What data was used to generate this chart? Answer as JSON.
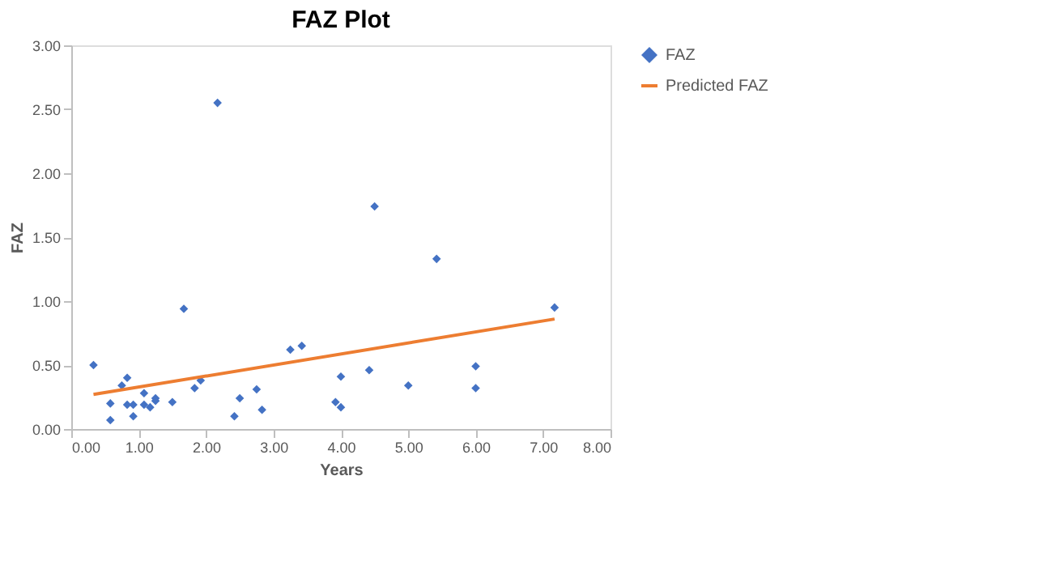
{
  "chart_data": {
    "type": "scatter",
    "title": "FAZ Plot",
    "xlabel": "Years",
    "ylabel": "FAZ",
    "xlim": [
      0,
      8
    ],
    "xticks": [
      {
        "value": 0,
        "label": "0.00"
      },
      {
        "value": 1,
        "label": "1.00"
      },
      {
        "value": 2,
        "label": "2.00"
      },
      {
        "value": 3,
        "label": "3.00"
      },
      {
        "value": 4,
        "label": "4.00"
      },
      {
        "value": 5,
        "label": "5.00"
      },
      {
        "value": 6,
        "label": "6.00"
      },
      {
        "value": 7,
        "label": "7.00"
      },
      {
        "value": 8,
        "label": "8.00"
      }
    ],
    "ylim": [
      0,
      3
    ],
    "yticks": [
      {
        "value": 0,
        "label": "0.00"
      },
      {
        "value": 0.5,
        "label": "0.50"
      },
      {
        "value": 1,
        "label": "1.00"
      },
      {
        "value": 1.5,
        "label": "1.50"
      },
      {
        "value": 2,
        "label": "2.00"
      },
      {
        "value": 2.5,
        "label": "2.50"
      },
      {
        "value": 3,
        "label": "3.00"
      }
    ],
    "grid": false,
    "legend": "right",
    "series": [
      {
        "name": "FAZ",
        "marker": "diamond",
        "color": "#4472c4",
        "x": [
          0.33,
          0.58,
          0.58,
          0.75,
          0.83,
          0.83,
          0.92,
          0.92,
          1.08,
          1.08,
          1.17,
          1.25,
          1.25,
          1.5,
          1.67,
          1.83,
          1.92,
          2.17,
          2.42,
          2.5,
          2.75,
          2.83,
          3.25,
          3.42,
          3.92,
          4.0,
          4.0,
          4.42,
          4.5,
          5.0,
          5.42,
          6.0,
          6.0,
          7.17
        ],
        "values": [
          0.5,
          0.2,
          0.07,
          0.34,
          0.4,
          0.19,
          0.19,
          0.1,
          0.28,
          0.19,
          0.17,
          0.22,
          0.24,
          0.21,
          0.94,
          0.32,
          0.38,
          2.55,
          0.1,
          0.24,
          0.31,
          0.15,
          0.62,
          0.65,
          0.21,
          0.17,
          0.41,
          0.46,
          1.74,
          0.34,
          1.33,
          0.49,
          0.32,
          0.95
        ]
      },
      {
        "name": "Predicted FAZ",
        "type": "line",
        "marker": "none",
        "line_style": "solid",
        "color": "#ed7d31",
        "x": [
          0.33,
          7.17
        ],
        "values": [
          0.27,
          0.86
        ]
      }
    ]
  }
}
